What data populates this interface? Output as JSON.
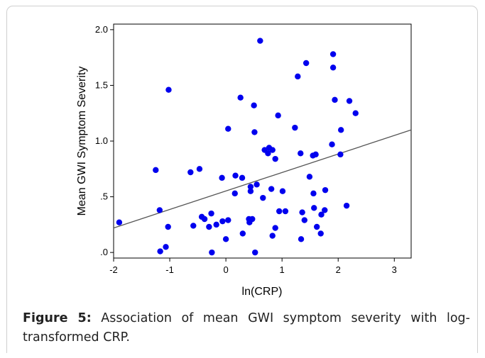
{
  "chart_data": {
    "type": "scatter",
    "xlabel": "ln(CRP)",
    "ylabel": "Mean GWI Symptom Severity",
    "xlim": [
      -2,
      3.3
    ],
    "ylim": [
      -0.05,
      2.05
    ],
    "x_ticks": [
      -2,
      -1,
      0,
      1,
      2,
      3
    ],
    "x_tick_labels": [
      "-2",
      "-1",
      "0",
      "1",
      "2",
      "3"
    ],
    "y_ticks": [
      0,
      0.5,
      1.0,
      1.5,
      2.0
    ],
    "y_tick_labels": [
      ".0",
      ".5",
      "1.0",
      "1.5",
      "2.0"
    ],
    "point_color": "#0000ee",
    "line_color": "#555555",
    "regression_line": {
      "x": [
        -2,
        3.3
      ],
      "y": [
        0.22,
        1.1
      ]
    },
    "points": [
      {
        "x": -1.9,
        "y": 0.27
      },
      {
        "x": -1.25,
        "y": 0.74
      },
      {
        "x": -1.18,
        "y": 0.38
      },
      {
        "x": -1.17,
        "y": 0.01
      },
      {
        "x": -1.07,
        "y": 0.05
      },
      {
        "x": -1.03,
        "y": 0.23
      },
      {
        "x": -1.02,
        "y": 1.46
      },
      {
        "x": -0.63,
        "y": 0.72
      },
      {
        "x": -0.58,
        "y": 0.24
      },
      {
        "x": -0.47,
        "y": 0.75
      },
      {
        "x": -0.43,
        "y": 0.32
      },
      {
        "x": -0.38,
        "y": 0.3
      },
      {
        "x": -0.3,
        "y": 0.23
      },
      {
        "x": -0.26,
        "y": 0.35
      },
      {
        "x": -0.25,
        "y": 0.0
      },
      {
        "x": -0.17,
        "y": 0.25
      },
      {
        "x": -0.07,
        "y": 0.67
      },
      {
        "x": -0.06,
        "y": 0.28
      },
      {
        "x": 0.0,
        "y": 0.12
      },
      {
        "x": 0.04,
        "y": 0.29
      },
      {
        "x": 0.04,
        "y": 1.11
      },
      {
        "x": 0.16,
        "y": 0.53
      },
      {
        "x": 0.17,
        "y": 0.69
      },
      {
        "x": 0.26,
        "y": 1.39
      },
      {
        "x": 0.29,
        "y": 0.67
      },
      {
        "x": 0.3,
        "y": 0.17
      },
      {
        "x": 0.41,
        "y": 0.3
      },
      {
        "x": 0.42,
        "y": 0.27
      },
      {
        "x": 0.44,
        "y": 0.59
      },
      {
        "x": 0.44,
        "y": 0.55
      },
      {
        "x": 0.47,
        "y": 0.3
      },
      {
        "x": 0.5,
        "y": 1.32
      },
      {
        "x": 0.51,
        "y": 1.08
      },
      {
        "x": 0.52,
        "y": 0.0
      },
      {
        "x": 0.55,
        "y": 0.61
      },
      {
        "x": 0.61,
        "y": 1.9
      },
      {
        "x": 0.66,
        "y": 0.49
      },
      {
        "x": 0.69,
        "y": 0.92
      },
      {
        "x": 0.75,
        "y": 0.89
      },
      {
        "x": 0.77,
        "y": 0.94
      },
      {
        "x": 0.81,
        "y": 0.57
      },
      {
        "x": 0.83,
        "y": 0.92
      },
      {
        "x": 0.83,
        "y": 0.15
      },
      {
        "x": 0.88,
        "y": 0.84
      },
      {
        "x": 0.88,
        "y": 0.22
      },
      {
        "x": 0.93,
        "y": 1.23
      },
      {
        "x": 0.95,
        "y": 0.37
      },
      {
        "x": 1.01,
        "y": 0.55
      },
      {
        "x": 1.06,
        "y": 0.37
      },
      {
        "x": 1.23,
        "y": 1.12
      },
      {
        "x": 1.28,
        "y": 1.58
      },
      {
        "x": 1.33,
        "y": 0.89
      },
      {
        "x": 1.34,
        "y": 0.12
      },
      {
        "x": 1.36,
        "y": 0.36
      },
      {
        "x": 1.4,
        "y": 0.29
      },
      {
        "x": 1.43,
        "y": 1.7
      },
      {
        "x": 1.49,
        "y": 0.68
      },
      {
        "x": 1.55,
        "y": 0.87
      },
      {
        "x": 1.56,
        "y": 0.53
      },
      {
        "x": 1.57,
        "y": 0.4
      },
      {
        "x": 1.6,
        "y": 0.88
      },
      {
        "x": 1.62,
        "y": 0.23
      },
      {
        "x": 1.69,
        "y": 0.17
      },
      {
        "x": 1.7,
        "y": 0.34
      },
      {
        "x": 1.76,
        "y": 0.38
      },
      {
        "x": 1.77,
        "y": 0.56
      },
      {
        "x": 1.89,
        "y": 0.97
      },
      {
        "x": 1.91,
        "y": 1.78
      },
      {
        "x": 1.91,
        "y": 1.66
      },
      {
        "x": 1.94,
        "y": 1.37
      },
      {
        "x": 2.04,
        "y": 0.88
      },
      {
        "x": 2.05,
        "y": 1.1
      },
      {
        "x": 2.15,
        "y": 0.42
      },
      {
        "x": 2.2,
        "y": 1.36
      },
      {
        "x": 2.31,
        "y": 1.25
      }
    ]
  },
  "caption": {
    "label": "Figure 5:",
    "text": "Association of mean GWI symptom severity with log-transformed CRP."
  }
}
